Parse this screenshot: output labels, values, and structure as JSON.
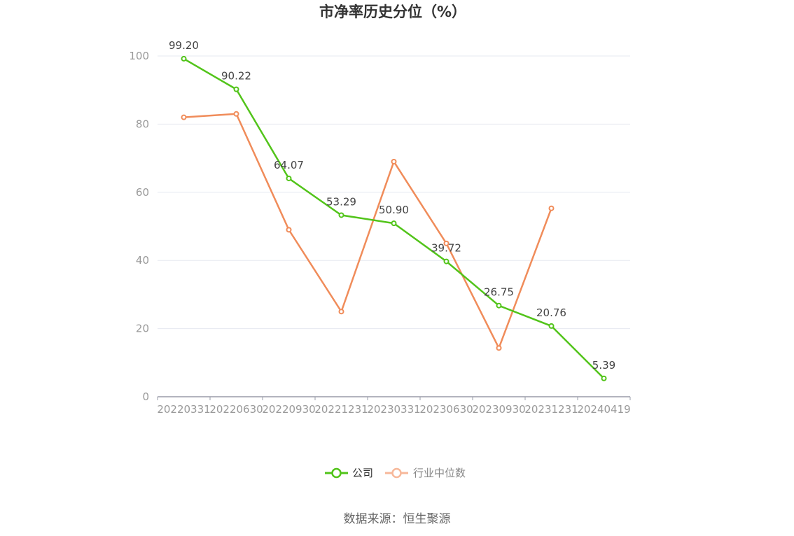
{
  "chart_data": {
    "type": "line",
    "title": "市净率历史分位（%）",
    "categories": [
      "20220331",
      "20220630",
      "20220930",
      "20221231",
      "20230331",
      "20230630",
      "20230930",
      "20231231",
      "20240419"
    ],
    "series": [
      {
        "name": "公司",
        "color": "#52c41a",
        "values": [
          99.2,
          90.22,
          64.07,
          53.29,
          50.9,
          39.72,
          26.75,
          20.76,
          5.39
        ],
        "labels": [
          "99.20",
          "90.22",
          "64.07",
          "53.29",
          "50.90",
          "39.72",
          "26.75",
          "20.76",
          "5.39"
        ]
      },
      {
        "name": "行业中位数",
        "color": "#f08c5a",
        "values": [
          82,
          83,
          49,
          25,
          69,
          45,
          14.3,
          55.3,
          null
        ]
      }
    ],
    "ylim": [
      0,
      100
    ],
    "yticks": [
      "0",
      "20",
      "40",
      "60",
      "80",
      "100"
    ],
    "ytick_values": [
      0,
      20,
      40,
      60,
      80,
      100
    ],
    "grid": true,
    "legend_position": "bottom"
  },
  "source_text": "数据来源：恒生聚源",
  "legend_colors": {
    "company_marker": "#52c41a",
    "industry_marker": "#f7b89a",
    "company_text": "#333333",
    "industry_text": "#888888"
  }
}
